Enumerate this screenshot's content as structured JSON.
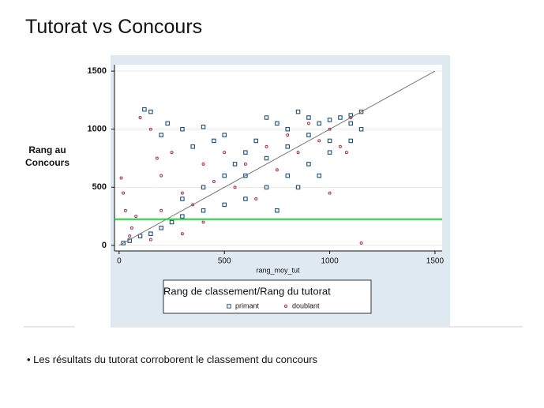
{
  "slide": {
    "title": "Tutorat vs Concours",
    "bullet": "Les résultats du tutorat corroborent le classement du concours"
  },
  "chart_data": {
    "type": "scatter",
    "x_label": "rang_moy_tut",
    "y_label": "Rang au Concours",
    "legend_title": "Rang de classement/Rang du tutorat",
    "legend_position": "bottom",
    "xlim": [
      -22,
      1534
    ],
    "ylim": [
      -48,
      1555
    ],
    "xticks": [
      0,
      500,
      1000,
      1500
    ],
    "yticks": [
      0,
      500,
      1000,
      1500
    ],
    "grid": true,
    "threshold": 225,
    "threshold_color": "#2ecc40",
    "reference_line": {
      "x": [
        0,
        1500
      ],
      "y": [
        0,
        1500
      ],
      "color": "#777777"
    },
    "series": [
      {
        "name": "primant",
        "color": "#1f4e79",
        "marker": "square",
        "x": [
          120,
          150,
          200,
          230,
          300,
          350,
          400,
          450,
          500,
          550,
          600,
          650,
          700,
          750,
          800,
          850,
          900,
          950,
          1000,
          1050,
          1100,
          1150,
          1150,
          1100,
          1000,
          900,
          800,
          700,
          600,
          500,
          400,
          300,
          250,
          200,
          150,
          100,
          50,
          20,
          600,
          700,
          800,
          900,
          1000,
          750,
          500,
          400,
          850,
          950,
          1100,
          300
        ],
        "values": [
          1170,
          1150,
          950,
          1050,
          1000,
          850,
          1020,
          900,
          950,
          700,
          800,
          900,
          1100,
          1050,
          1000,
          1150,
          1100,
          1050,
          1080,
          1100,
          1120,
          1150,
          1000,
          900,
          800,
          700,
          600,
          500,
          400,
          350,
          300,
          250,
          200,
          150,
          100,
          80,
          40,
          20,
          600,
          750,
          850,
          950,
          900,
          300,
          600,
          500,
          500,
          600,
          1050,
          400
        ]
      },
      {
        "name": "doublant",
        "color": "#a3304b",
        "marker": "circle",
        "x": [
          10,
          20,
          30,
          60,
          80,
          100,
          150,
          180,
          200,
          250,
          300,
          350,
          400,
          450,
          500,
          550,
          600,
          650,
          700,
          750,
          800,
          850,
          900,
          950,
          1000,
          1050,
          1100,
          1150,
          1000,
          300,
          150,
          50,
          400,
          1080,
          200
        ],
        "values": [
          580,
          450,
          300,
          150,
          250,
          1100,
          1000,
          750,
          600,
          800,
          450,
          350,
          700,
          550,
          800,
          500,
          700,
          400,
          850,
          650,
          950,
          800,
          1050,
          900,
          1000,
          850,
          1100,
          20,
          450,
          100,
          50,
          80,
          200,
          800,
          300
        ]
      }
    ]
  }
}
